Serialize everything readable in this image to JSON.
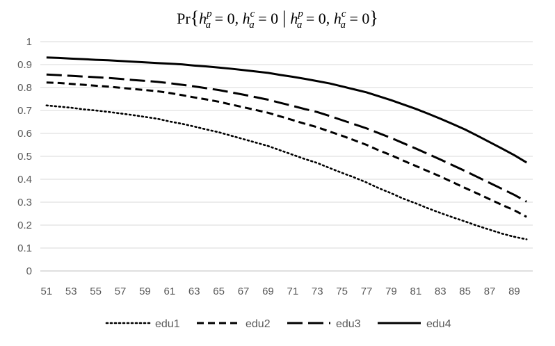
{
  "chart_data": {
    "type": "line",
    "title_parts": {
      "pr": "Pr",
      "open_brace": "{",
      "h": "h",
      "sub_a": "a",
      "sup_p": "p",
      "sup_c": "c",
      "eq_zero": " = 0, ",
      "eq_zero_end": " = 0",
      "bar": "|",
      "close_brace": "}"
    },
    "x": [
      51,
      52,
      53,
      54,
      55,
      56,
      57,
      58,
      59,
      60,
      61,
      62,
      63,
      64,
      65,
      66,
      67,
      68,
      69,
      70,
      71,
      72,
      73,
      74,
      75,
      76,
      77,
      78,
      79,
      80,
      81,
      82,
      83,
      84,
      85,
      86,
      87,
      88,
      89,
      90
    ],
    "x_ticks": [
      51,
      53,
      55,
      57,
      59,
      61,
      63,
      65,
      67,
      69,
      71,
      73,
      75,
      77,
      79,
      81,
      83,
      85,
      87,
      89
    ],
    "y_ticks": [
      0,
      0.1,
      0.2,
      0.3,
      0.4,
      0.5,
      0.6,
      0.7,
      0.8,
      0.9,
      1
    ],
    "y_tick_labels": [
      "0",
      "0.1",
      "0.2",
      "0.3",
      "0.4",
      "0.5",
      "0.6",
      "0.7",
      "0.8",
      "0.9",
      "1"
    ],
    "xlim": [
      51,
      90
    ],
    "ylim": [
      0,
      1
    ],
    "grid": true,
    "legend_position": "bottom",
    "series": [
      {
        "name": "edu1",
        "dash": "dotted",
        "values": [
          0.722,
          0.717,
          0.712,
          0.705,
          0.7,
          0.694,
          0.687,
          0.68,
          0.672,
          0.664,
          0.652,
          0.642,
          0.63,
          0.617,
          0.605,
          0.59,
          0.575,
          0.56,
          0.545,
          0.526,
          0.507,
          0.488,
          0.471,
          0.449,
          0.428,
          0.408,
          0.386,
          0.361,
          0.339,
          0.315,
          0.295,
          0.273,
          0.253,
          0.234,
          0.216,
          0.197,
          0.18,
          0.163,
          0.149,
          0.138
        ]
      },
      {
        "name": "edu2",
        "dash": "short",
        "values": [
          0.822,
          0.82,
          0.816,
          0.812,
          0.808,
          0.804,
          0.799,
          0.794,
          0.789,
          0.784,
          0.776,
          0.767,
          0.757,
          0.748,
          0.738,
          0.726,
          0.714,
          0.702,
          0.69,
          0.674,
          0.658,
          0.642,
          0.627,
          0.608,
          0.59,
          0.57,
          0.55,
          0.526,
          0.505,
          0.481,
          0.458,
          0.435,
          0.412,
          0.387,
          0.362,
          0.338,
          0.313,
          0.288,
          0.265,
          0.236
        ]
      },
      {
        "name": "edu3",
        "dash": "long",
        "values": [
          0.857,
          0.854,
          0.851,
          0.848,
          0.845,
          0.842,
          0.838,
          0.833,
          0.829,
          0.825,
          0.819,
          0.812,
          0.805,
          0.797,
          0.789,
          0.779,
          0.769,
          0.758,
          0.747,
          0.733,
          0.72,
          0.706,
          0.693,
          0.676,
          0.658,
          0.64,
          0.622,
          0.601,
          0.58,
          0.557,
          0.534,
          0.51,
          0.486,
          0.461,
          0.436,
          0.41,
          0.384,
          0.358,
          0.332,
          0.302
        ]
      },
      {
        "name": "edu4",
        "dash": "solid",
        "values": [
          0.931,
          0.929,
          0.926,
          0.924,
          0.921,
          0.919,
          0.916,
          0.913,
          0.91,
          0.907,
          0.904,
          0.901,
          0.896,
          0.892,
          0.887,
          0.882,
          0.876,
          0.87,
          0.864,
          0.855,
          0.847,
          0.838,
          0.828,
          0.818,
          0.805,
          0.792,
          0.779,
          0.762,
          0.745,
          0.726,
          0.707,
          0.686,
          0.664,
          0.641,
          0.617,
          0.59,
          0.562,
          0.534,
          0.505,
          0.473
        ]
      }
    ]
  }
}
